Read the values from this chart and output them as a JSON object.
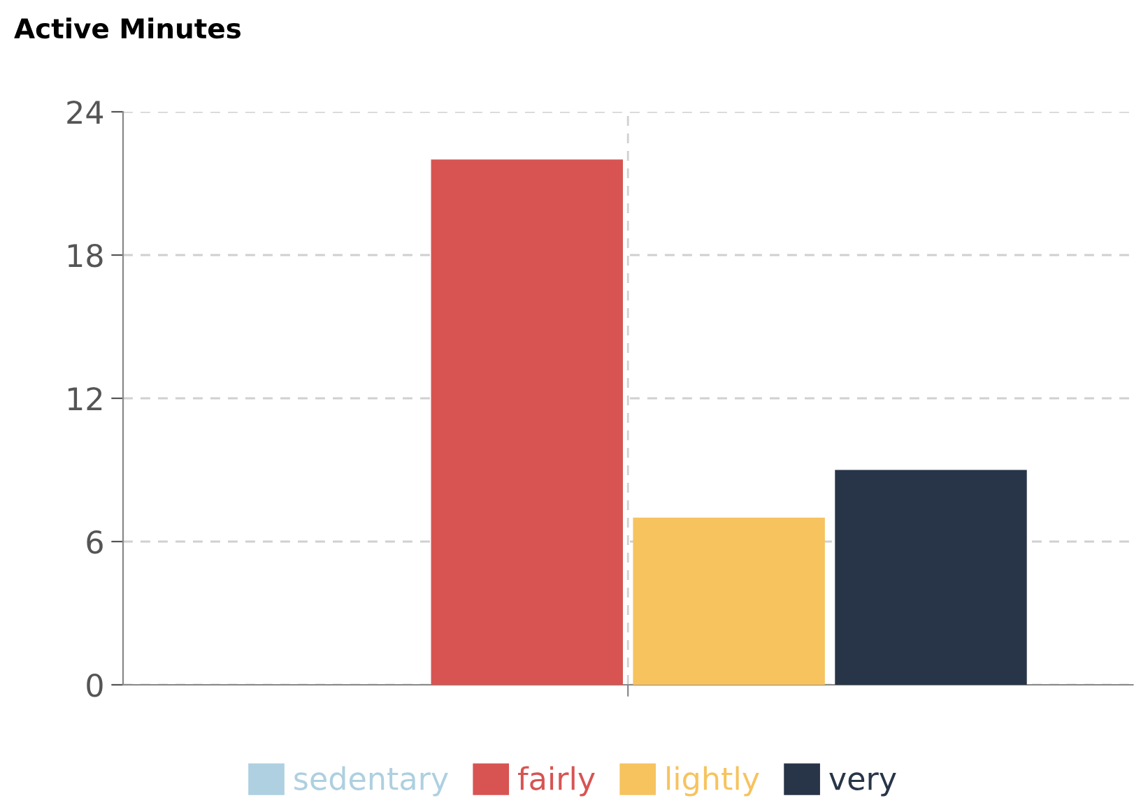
{
  "chart_data": {
    "type": "bar",
    "title": "Active Minutes",
    "categories": [
      null
    ],
    "series": [
      {
        "name": "sedentary",
        "color": "#aed0e0",
        "values": [
          0
        ]
      },
      {
        "name": "fairly",
        "color": "#d75452",
        "values": [
          22
        ]
      },
      {
        "name": "lightly",
        "color": "#f6c35f",
        "values": [
          7
        ]
      },
      {
        "name": "very",
        "color": "#283548",
        "values": [
          9
        ]
      }
    ],
    "ylim": [
      0,
      24
    ],
    "yticks": [
      0,
      6,
      12,
      18,
      24
    ],
    "grid": true,
    "legend": "bottom"
  }
}
